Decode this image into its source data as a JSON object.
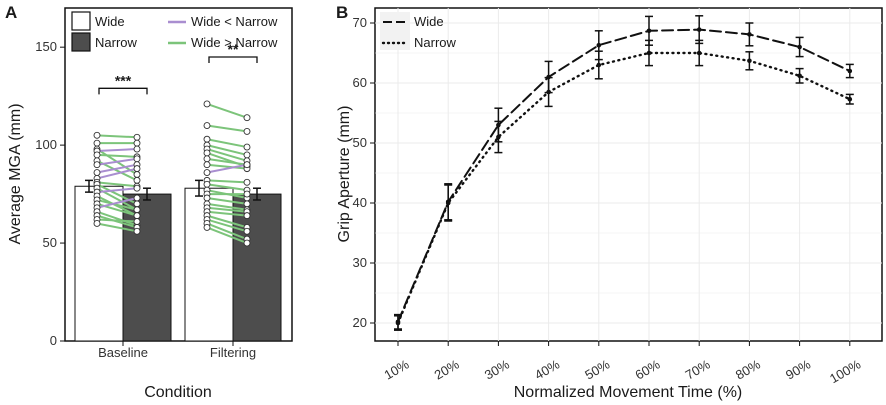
{
  "colors": {
    "wide_bar": "#ffffff",
    "narrow_bar": "#4d4d4d",
    "wide_less_narrow": "#a98ed0",
    "wide_greater_narrow": "#7cc47a",
    "grid": "#ebebeb",
    "ink": "#111111"
  },
  "chart_data": [
    {
      "panel": "A",
      "type": "bar",
      "title": "",
      "xlabel": "Condition",
      "ylabel": "Average MGA (mm)",
      "ylim": [
        0,
        170
      ],
      "yticks": [
        0,
        50,
        100,
        150
      ],
      "categories": [
        "Baseline",
        "Filtering"
      ],
      "legend": {
        "placement": "top",
        "bar_entries": [
          "Wide",
          "Narrow"
        ],
        "line_entries": [
          {
            "label": "Wide < Narrow",
            "color_key": "wide_less_narrow"
          },
          {
            "label": "Wide > Narrow",
            "color_key": "wide_greater_narrow"
          }
        ]
      },
      "series": [
        {
          "name": "Wide",
          "values": [
            79,
            78
          ],
          "errors": [
            3,
            4
          ]
        },
        {
          "name": "Narrow",
          "values": [
            75,
            75
          ],
          "errors": [
            3,
            3
          ]
        }
      ],
      "significance": [
        {
          "category": "Baseline",
          "label": "***"
        },
        {
          "category": "Filtering",
          "label": "**"
        }
      ],
      "participants": [
        {
          "category": "Baseline",
          "pairs": [
            [
              105,
              104
            ],
            [
              101,
              101
            ],
            [
              98,
              85
            ],
            [
              97,
              98
            ],
            [
              95,
              94
            ],
            [
              92,
              82
            ],
            [
              90,
              93
            ],
            [
              86,
              90
            ],
            [
              83,
              88
            ],
            [
              81,
              79
            ],
            [
              80,
              70
            ],
            [
              78,
              67
            ],
            [
              76,
              78
            ],
            [
              74,
              64
            ],
            [
              72,
              67
            ],
            [
              70,
              64
            ],
            [
              68,
              73
            ],
            [
              66,
              59
            ],
            [
              64,
              58
            ],
            [
              62,
              61
            ],
            [
              60,
              56
            ]
          ]
        },
        {
          "category": "Filtering",
          "pairs": [
            [
              121,
              114
            ],
            [
              110,
              107
            ],
            [
              103,
              99
            ],
            [
              100,
              95
            ],
            [
              98,
              92
            ],
            [
              96,
              89
            ],
            [
              93,
              90
            ],
            [
              90,
              88
            ],
            [
              86,
              90
            ],
            [
              82,
              81
            ],
            [
              80,
              77
            ],
            [
              77,
              73
            ],
            [
              75,
              75
            ],
            [
              73,
              70
            ],
            [
              70,
              67
            ],
            [
              68,
              66
            ],
            [
              66,
              64
            ],
            [
              64,
              58
            ],
            [
              62,
              56
            ],
            [
              60,
              52
            ],
            [
              58,
              50
            ]
          ]
        }
      ]
    },
    {
      "panel": "B",
      "type": "line",
      "title": "",
      "xlabel": "Normalized Movement Time (%)",
      "ylabel": "Grip Aperture (mm)",
      "x": [
        "10%",
        "20%",
        "30%",
        "40%",
        "50%",
        "60%",
        "70%",
        "80%",
        "90%",
        "100%"
      ],
      "ylim": [
        17,
        72.5
      ],
      "yticks": [
        20,
        30,
        40,
        50,
        60,
        70
      ],
      "grid": true,
      "legend": {
        "placement": "top-left"
      },
      "series": [
        {
          "name": "Wide",
          "style": "long-dash",
          "values": [
            20.2,
            40.2,
            53.0,
            61.0,
            66.3,
            68.7,
            68.9,
            68.1,
            66.0,
            62.0
          ],
          "errors": [
            1.2,
            3.0,
            2.8,
            2.6,
            2.4,
            2.4,
            2.3,
            1.9,
            1.6,
            1.1
          ]
        },
        {
          "name": "Narrow",
          "style": "dotted",
          "values": [
            20.0,
            40.0,
            51.0,
            58.5,
            63.0,
            65.0,
            65.0,
            63.7,
            61.2,
            57.3
          ],
          "errors": [
            1.2,
            3.0,
            2.6,
            2.4,
            2.3,
            2.1,
            2.1,
            1.5,
            1.2,
            0.8
          ]
        }
      ]
    }
  ]
}
